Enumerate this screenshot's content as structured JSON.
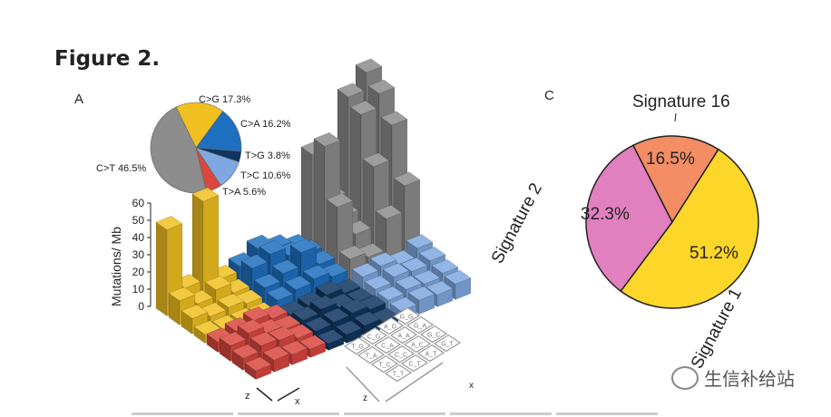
{
  "figure": {
    "title": "Figure 2.",
    "panel_a_label": "A",
    "panel_c_label": "C"
  },
  "watermark": "生信补给站",
  "chart_data": [
    {
      "type": "pie",
      "panel": "A",
      "slices": [
        {
          "label": "C>G 17.3%",
          "name": "C>G",
          "value": 17.3,
          "color": "#f0c020"
        },
        {
          "label": "C>A 16.2%",
          "name": "C>A",
          "value": 16.2,
          "color": "#1f6fc0"
        },
        {
          "label": "T>G 3.8%",
          "name": "T>G",
          "value": 3.8,
          "color": "#0f3560"
        },
        {
          "label": "T>C 10.6%",
          "name": "T>C",
          "value": 10.6,
          "color": "#7fa8e0"
        },
        {
          "label": "T>A 5.6%",
          "name": "T>A",
          "value": 5.6,
          "color": "#d9473f"
        },
        {
          "label": "C>T 46.5%",
          "name": "C>T",
          "value": 46.5,
          "color": "#8c8c8c"
        }
      ]
    },
    {
      "type": "bar3d",
      "panel": "A",
      "ylabel": "Mutations/ Mb",
      "yticks": [
        "0",
        "10",
        "20",
        "30",
        "40",
        "50",
        "60"
      ],
      "axis_labels": {
        "z": "z",
        "x": "x",
        "z2": "z",
        "x2": "x"
      },
      "context_grid": [
        "T_G",
        "C_G",
        "A_G",
        "G_G",
        "T_A",
        "C_A",
        "A_A",
        "G_A",
        "T_C",
        "C_C",
        "A_C",
        "G_C",
        "T_T",
        "C_T",
        "A_T",
        "G_T"
      ],
      "blocks": [
        {
          "name": "C>G",
          "color": "#f0c020",
          "values": [
            50,
            12,
            58,
            9,
            14,
            8,
            12,
            6,
            9,
            6,
            7,
            5,
            5,
            4,
            4,
            3
          ]
        },
        {
          "name": "C>A",
          "color": "#1f6fc0",
          "values": [
            12,
            18,
            14,
            10,
            16,
            20,
            15,
            12,
            10,
            14,
            22,
            11,
            8,
            10,
            12,
            9
          ]
        },
        {
          "name": "C>T",
          "color": "#8c8c8c",
          "values": [
            60,
            30,
            85,
            95,
            70,
            25,
            80,
            88,
            40,
            20,
            55,
            75,
            15,
            12,
            30,
            45
          ]
        },
        {
          "name": "T>A",
          "color": "#d9473f",
          "values": [
            6,
            8,
            10,
            7,
            9,
            12,
            8,
            6,
            7,
            10,
            9,
            6,
            5,
            7,
            6,
            5
          ]
        },
        {
          "name": "T>G",
          "color": "#0f3560",
          "values": [
            5,
            6,
            8,
            5,
            7,
            9,
            6,
            5,
            6,
            7,
            8,
            6,
            4,
            5,
            6,
            4
          ]
        },
        {
          "name": "T>C",
          "color": "#7fa8e0",
          "values": [
            10,
            12,
            9,
            14,
            8,
            11,
            10,
            12,
            7,
            9,
            8,
            10,
            6,
            8,
            7,
            9
          ]
        }
      ]
    },
    {
      "type": "pie",
      "panel": "C",
      "slices": [
        {
          "name": "Signature 16",
          "label": "16.5%",
          "value": 16.5,
          "color": "#f48c64"
        },
        {
          "name": "Signature 1",
          "label": "51.2%",
          "value": 51.2,
          "color": "#fdd62a"
        },
        {
          "name": "Signature 2",
          "label": "32.3%",
          "value": 32.3,
          "color": "#e17fbf"
        }
      ]
    }
  ]
}
